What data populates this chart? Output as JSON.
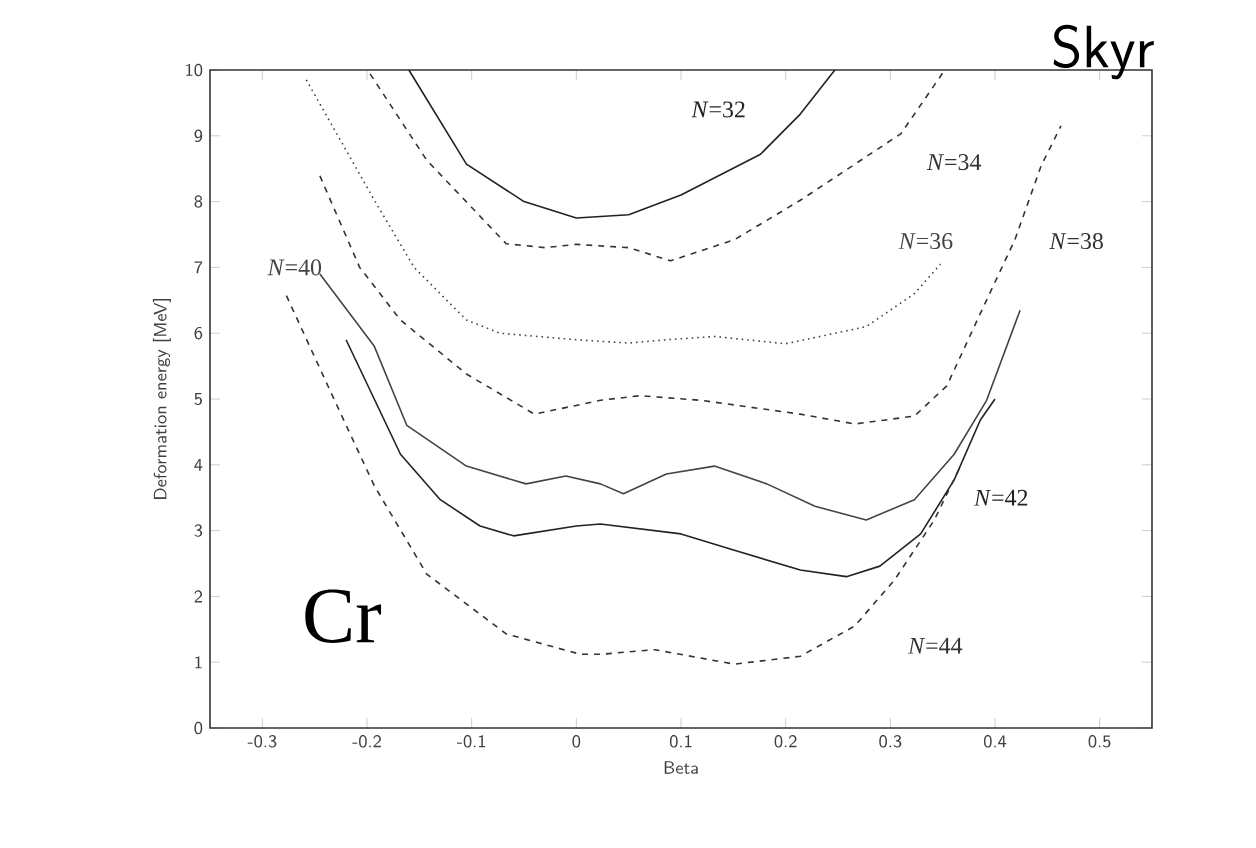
{
  "chart_data": {
    "type": "line",
    "xlabel": "Beta",
    "ylabel": "Deformation energy [MeV]",
    "xlim": [
      -0.35,
      0.55
    ],
    "ylim": [
      0,
      10
    ],
    "xticks": [
      -0.3,
      -0.2,
      -0.1,
      0,
      0.1,
      0.2,
      0.3,
      0.4,
      0.5
    ],
    "yticks": [
      0,
      1,
      2,
      3,
      4,
      5,
      6,
      7,
      8,
      9,
      10
    ],
    "grid": false,
    "series": [
      {
        "name": "*N*=32",
        "color": "#222222",
        "line_style": "solid",
        "x": [
          -0.16,
          -0.105,
          -0.05,
          0,
          0.05,
          0.1,
          0.176,
          0.214,
          0.247
        ],
        "values": [
          10,
          8.57,
          8.0,
          7.75,
          7.8,
          8.1,
          8.72,
          9.33,
          10
        ]
      },
      {
        "name": "*N*=34",
        "color": "#333333",
        "line_style": "dashed",
        "x": [
          -0.197,
          -0.143,
          -0.067,
          -0.03,
          0,
          0.05,
          0.09,
          0.151,
          0.214,
          0.31,
          0.352
        ],
        "values": [
          9.94,
          8.63,
          7.36,
          7.3,
          7.35,
          7.3,
          7.1,
          7.42,
          8.02,
          9.03,
          10
        ]
      },
      {
        "name": "*N*=36",
        "color": "#444444",
        "line_style": "dotted",
        "x": [
          -0.258,
          -0.193,
          -0.155,
          -0.105,
          -0.073,
          0,
          0.05,
          0.086,
          0.132,
          0.2,
          0.277,
          0.323,
          0.348
        ],
        "values": [
          9.85,
          8.02,
          7.0,
          6.2,
          6.0,
          5.9,
          5.85,
          5.9,
          5.95,
          5.84,
          6.1,
          6.6,
          7.05
        ]
      },
      {
        "name": "*N*=38",
        "color": "#333333",
        "line_style": "dashed",
        "x": [
          -0.245,
          -0.207,
          -0.168,
          -0.105,
          -0.04,
          0.023,
          0.061,
          0.119,
          0.214,
          0.266,
          0.323,
          0.354,
          0.386,
          0.419,
          0.444,
          0.463
        ],
        "values": [
          8.39,
          7.0,
          6.2,
          5.38,
          4.77,
          4.98,
          5.05,
          4.98,
          4.77,
          4.62,
          4.74,
          5.2,
          6.3,
          7.42,
          8.54,
          9.15
        ]
      },
      {
        "name": "*N*=40",
        "color": "#444444",
        "line_style": "solid",
        "x": [
          -0.245,
          -0.193,
          -0.162,
          -0.105,
          -0.048,
          -0.01,
          0.023,
          0.045,
          0.086,
          0.132,
          0.182,
          0.228,
          0.277,
          0.323,
          0.361,
          0.392,
          0.424
        ],
        "values": [
          6.9,
          5.8,
          4.6,
          3.98,
          3.71,
          3.83,
          3.71,
          3.56,
          3.86,
          3.98,
          3.71,
          3.37,
          3.16,
          3.47,
          4.16,
          4.98,
          6.35
        ]
      },
      {
        "name": "*N*=42",
        "color": "#222222",
        "line_style": "solid",
        "x": [
          -0.22,
          -0.168,
          -0.13,
          -0.092,
          -0.06,
          0,
          0.023,
          0.1,
          0.151,
          0.214,
          0.258,
          0.29,
          0.329,
          0.361,
          0.386,
          0.4
        ],
        "values": [
          5.9,
          4.16,
          3.47,
          3.07,
          2.92,
          3.07,
          3.1,
          2.95,
          2.7,
          2.4,
          2.3,
          2.46,
          2.95,
          3.77,
          4.68,
          5.0
        ]
      },
      {
        "name": "*N*=44",
        "color": "#333333",
        "line_style": "dashed",
        "x": [
          -0.277,
          -0.231,
          -0.193,
          -0.143,
          -0.067,
          0.004,
          0.023,
          0.075,
          0.151,
          0.214,
          0.266,
          0.304,
          0.342,
          0.367
        ],
        "values": [
          6.57,
          4.98,
          3.68,
          2.34,
          1.43,
          1.12,
          1.12,
          1.19,
          0.97,
          1.09,
          1.55,
          2.25,
          3.16,
          3.98
        ]
      }
    ],
    "annotations": [
      "Cr",
      "Skyr"
    ]
  }
}
